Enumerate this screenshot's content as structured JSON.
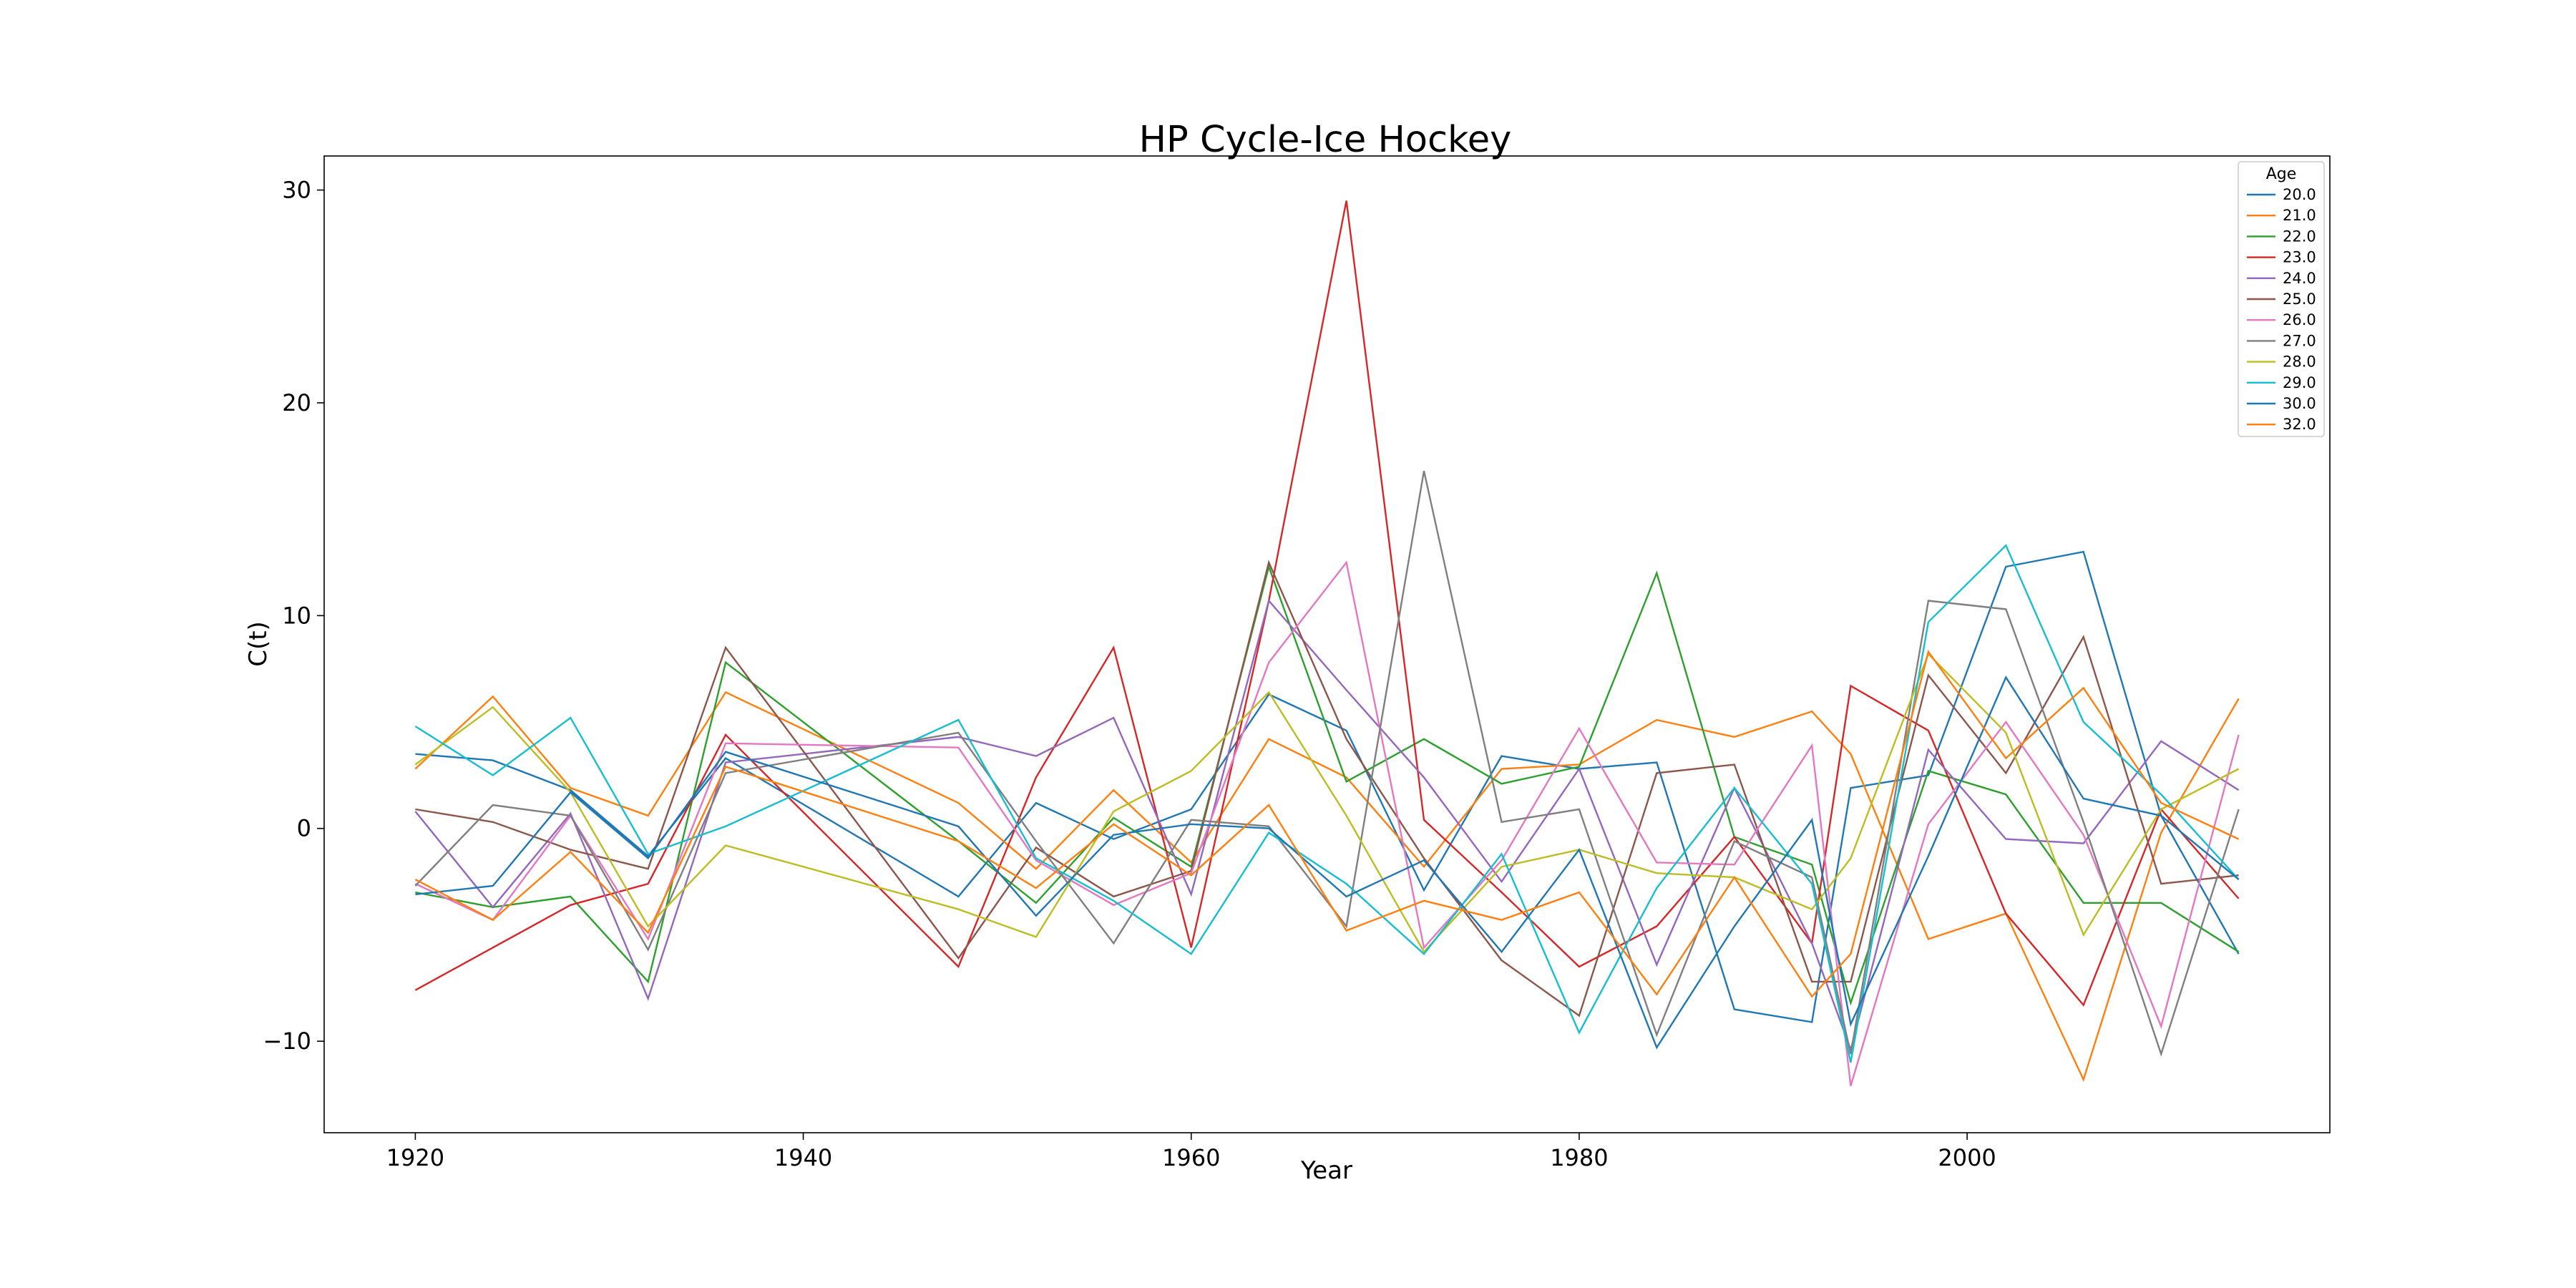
{
  "chart_data": {
    "type": "line",
    "title": "HP Cycle-Ice Hockey",
    "xlabel": "Year",
    "ylabel": "C(t)",
    "xlim": [
      1915.3,
      2018.7
    ],
    "ylim": [
      -14.3,
      31.6
    ],
    "xticks": [
      1920,
      1940,
      1960,
      1980,
      2000
    ],
    "yticks": [
      -10,
      0,
      10,
      20,
      30
    ],
    "grid": false,
    "legend": {
      "title": "Age",
      "placement": "top-right"
    },
    "x": [
      1920,
      1924,
      1928,
      1932,
      1936,
      1948,
      1952,
      1956,
      1960,
      1964,
      1968,
      1972,
      1976,
      1980,
      1984,
      1988,
      1992,
      1994,
      1998,
      2002,
      2006,
      2010,
      2014
    ],
    "series": [
      {
        "name": "20.0",
        "color": "#1f77b4",
        "values": [
          3.5,
          3.2,
          1.8,
          -1.3,
          3.3,
          -3.2,
          1.2,
          -0.5,
          0.9,
          6.3,
          4.6,
          -2.9,
          3.4,
          2.8,
          3.1,
          -8.5,
          -9.1,
          1.9,
          2.5,
          12.3,
          13.0,
          0.6,
          -5.9
        ]
      },
      {
        "name": "21.0",
        "color": "#ff7f0e",
        "values": [
          2.8,
          6.2,
          1.9,
          0.6,
          6.4,
          1.2,
          -1.9,
          1.8,
          -1.6,
          4.2,
          2.4,
          -1.8,
          2.8,
          3.0,
          5.1,
          4.3,
          5.5,
          3.5,
          -5.2,
          -4.0,
          -11.8,
          -0.2,
          6.1
        ]
      },
      {
        "name": "22.0",
        "color": "#2ca02c",
        "values": [
          -3.0,
          -3.7,
          -3.2,
          -7.2,
          7.8,
          -0.6,
          -3.5,
          0.5,
          -1.8,
          12.3,
          2.2,
          4.2,
          2.1,
          2.9,
          12.0,
          -0.4,
          -1.7,
          -8.2,
          2.7,
          1.6,
          -3.5,
          -3.5,
          -5.8
        ]
      },
      {
        "name": "23.0",
        "color": "#d62728",
        "values": [
          -7.6,
          -5.6,
          -3.6,
          -2.6,
          4.4,
          -6.5,
          2.4,
          8.5,
          -5.6,
          10.7,
          29.5,
          0.4,
          -3.0,
          -6.5,
          -4.6,
          -0.4,
          -5.4,
          6.7,
          4.6,
          -4.0,
          -8.3,
          0.9,
          -3.3
        ]
      },
      {
        "name": "24.0",
        "color": "#9467bd",
        "values": [
          0.8,
          -3.7,
          0.7,
          -8.0,
          3.1,
          4.3,
          3.4,
          5.2,
          -3.1,
          10.7,
          6.5,
          2.4,
          -2.5,
          2.8,
          -6.4,
          1.9,
          -5.4,
          -10.4,
          3.7,
          -0.5,
          -0.7,
          4.1,
          1.8
        ]
      },
      {
        "name": "25.0",
        "color": "#8c564b",
        "values": [
          0.9,
          0.3,
          -1.0,
          -1.9,
          8.5,
          -6.1,
          -0.9,
          -3.2,
          -2.0,
          12.5,
          4.2,
          -1.4,
          -6.2,
          -8.8,
          2.6,
          3.0,
          -7.2,
          -7.2,
          7.2,
          2.6,
          9.0,
          -2.6,
          -2.2
        ]
      },
      {
        "name": "26.0",
        "color": "#e377c2",
        "values": [
          -2.6,
          -4.3,
          0.6,
          -5.2,
          4.0,
          3.8,
          -1.5,
          -3.6,
          -2.1,
          7.8,
          12.5,
          -5.6,
          -1.5,
          4.7,
          -1.6,
          -1.7,
          3.9,
          -12.1,
          0.2,
          5.0,
          -0.3,
          -9.3,
          4.4
        ]
      },
      {
        "name": "27.0",
        "color": "#7f7f7f",
        "values": [
          -2.7,
          1.1,
          0.6,
          -5.7,
          2.6,
          4.5,
          -0.6,
          -5.4,
          0.4,
          0.1,
          -4.6,
          16.8,
          0.3,
          0.9,
          -9.7,
          -0.6,
          -2.3,
          -10.6,
          10.7,
          10.3,
          0.3,
          -10.6,
          0.9
        ]
      },
      {
        "name": "28.0",
        "color": "#bcbd22",
        "values": [
          3.0,
          5.7,
          1.7,
          -4.6,
          -0.8,
          -3.8,
          -5.1,
          0.8,
          2.7,
          6.4,
          0.6,
          -5.8,
          -1.8,
          -1.0,
          -2.1,
          -2.3,
          -3.8,
          -1.4,
          8.2,
          4.5,
          -5.0,
          0.9,
          2.8
        ]
      },
      {
        "name": "29.0",
        "color": "#17becf",
        "values": [
          4.8,
          2.5,
          5.2,
          -1.2,
          0.1,
          5.1,
          -1.4,
          -3.4,
          -5.9,
          -0.2,
          -2.6,
          -5.9,
          -1.2,
          -9.6,
          -2.8,
          1.9,
          -2.6,
          -11.0,
          9.7,
          13.3,
          5.0,
          1.6,
          -2.4
        ]
      },
      {
        "name": "30.0",
        "color": "#1f77b4",
        "values": [
          -3.1,
          -2.7,
          1.7,
          -1.4,
          3.6,
          0.1,
          -4.1,
          -0.3,
          0.2,
          0.0,
          -3.2,
          -1.5,
          -5.8,
          -1.0,
          -10.3,
          -4.6,
          0.4,
          -9.2,
          -1.3,
          7.1,
          1.4,
          0.6,
          -2.4
        ]
      },
      {
        "name": "32.0",
        "color": "#ff7f0e",
        "values": [
          -2.4,
          -4.3,
          -1.1,
          -4.9,
          2.9,
          -0.6,
          -2.8,
          0.2,
          -2.2,
          1.1,
          -4.8,
          -3.4,
          -4.3,
          -3.0,
          -7.8,
          -2.3,
          -7.9,
          -5.9,
          8.3,
          3.3,
          6.6,
          1.2,
          -0.5
        ]
      }
    ]
  }
}
